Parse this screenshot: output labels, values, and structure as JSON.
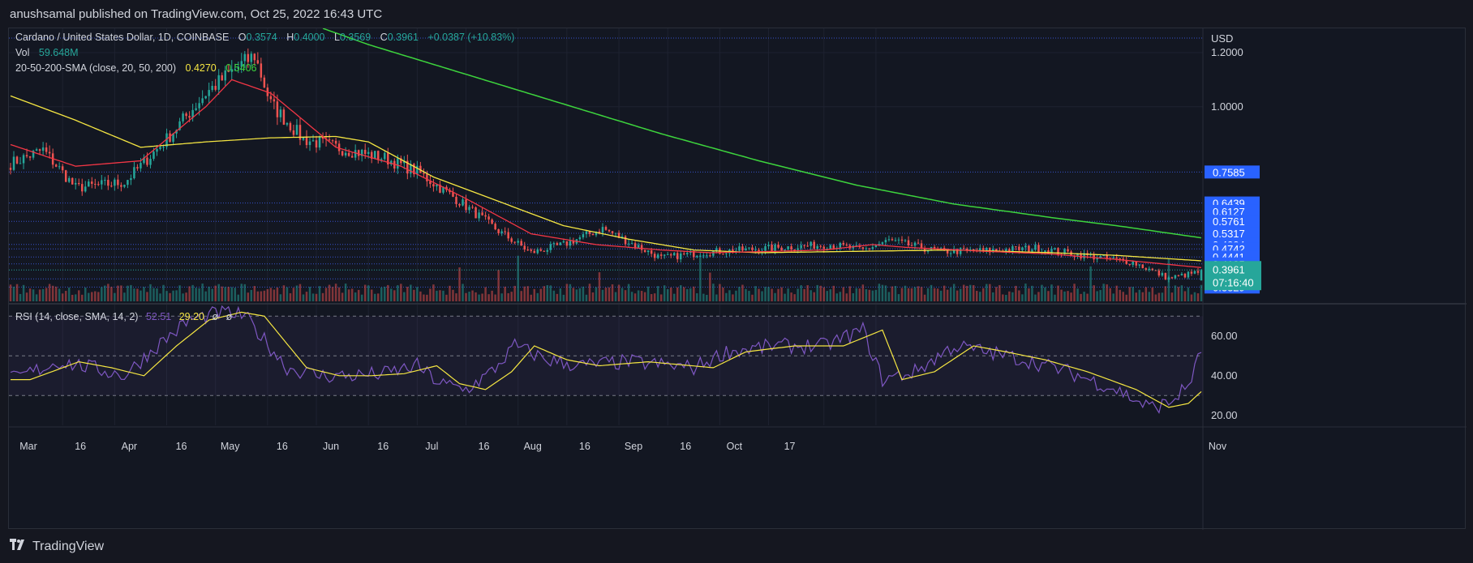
{
  "header": {
    "published_text": "anushsamal published on TradingView.com, Oct 25, 2022 16:43 UTC"
  },
  "legend": {
    "symbol": "Cardano / United States Dollar, 1D, COINBASE",
    "o_label": "O",
    "o_value": "0.3574",
    "h_label": "H",
    "h_value": "0.4000",
    "l_label": "L",
    "l_value": "0.3569",
    "c_label": "C",
    "c_value": "0.3961",
    "change": "+0.0387 (+10.83%)",
    "vol_label": "Vol",
    "vol_value": "59.648M",
    "sma_label": "20-50-200-SMA (close, 20, 50, 200)",
    "sma20_value": "0.4270",
    "sma50_value": "0.5406",
    "rsi_label": "RSI (14, close, SMA, 14, 2)",
    "rsi_value": "52.51",
    "rsi_sma_value": "29.20",
    "rsi_extra1": "ø",
    "rsi_extra2": "ø"
  },
  "price_axis": {
    "currency": "USD",
    "ticks": [
      "1.2000",
      "1.0000"
    ],
    "levels": [
      "0.7585",
      "0.6439",
      "0.6127",
      "0.5761",
      "0.5317",
      "0.4904",
      "0.4742",
      "0.4441",
      "0.4185",
      "0.3633",
      "0.3329"
    ],
    "current_price": "0.3961",
    "countdown": "07:16:40"
  },
  "rsi_axis": {
    "ticks": [
      "60.00",
      "40.00",
      "20.00"
    ]
  },
  "time_axis": {
    "labels": [
      "Mar",
      "16",
      "Apr",
      "16",
      "May",
      "16",
      "Jun",
      "16",
      "Jul",
      "16",
      "Aug",
      "16",
      "Sep",
      "16",
      "Oct",
      "17",
      "Nov"
    ]
  },
  "footer": {
    "brand": "TradingView"
  },
  "colors": {
    "up": "#26a69a",
    "down": "#ef5350",
    "sma20": "#f23645",
    "sma50": "#f5e642",
    "sma200": "#3dd43d",
    "rsi": "#7e57c2",
    "rsi_sma": "#f5e642",
    "level_line": "#3751c9",
    "level_label_bg": "#2962ff"
  },
  "chart_data": {
    "type": "candlestick",
    "title": "Cardano / United States Dollar, 1D, COINBASE",
    "ylim": [
      0.28,
      1.29
    ],
    "rsi_ylim": [
      15,
      75
    ],
    "horizontal_levels": [
      0.7585,
      0.6439,
      0.6127,
      0.5761,
      0.5317,
      0.4904,
      0.4742,
      0.4441,
      0.4185,
      0.3633,
      0.3329
    ],
    "close_anchors": [
      [
        0,
        0.79
      ],
      [
        10,
        0.84
      ],
      [
        20,
        0.7
      ],
      [
        35,
        0.72
      ],
      [
        48,
        0.88
      ],
      [
        60,
        1.05
      ],
      [
        68,
        1.13
      ],
      [
        75,
        1.19
      ],
      [
        80,
        1.01
      ],
      [
        90,
        0.88
      ],
      [
        100,
        0.85
      ],
      [
        115,
        0.81
      ],
      [
        125,
        0.76
      ],
      [
        138,
        0.65
      ],
      [
        150,
        0.54
      ],
      [
        160,
        0.46
      ],
      [
        170,
        0.49
      ],
      [
        182,
        0.55
      ],
      [
        190,
        0.5
      ],
      [
        200,
        0.44
      ],
      [
        212,
        0.46
      ],
      [
        225,
        0.47
      ],
      [
        238,
        0.48
      ],
      [
        252,
        0.49
      ],
      [
        262,
        0.47
      ],
      [
        270,
        0.505
      ],
      [
        285,
        0.465
      ],
      [
        300,
        0.467
      ],
      [
        315,
        0.477
      ],
      [
        330,
        0.45
      ],
      [
        345,
        0.425
      ],
      [
        356,
        0.365
      ],
      [
        366,
        0.39
      ]
    ],
    "rsi_anchors": [
      [
        0,
        38
      ],
      [
        15,
        47
      ],
      [
        25,
        44
      ],
      [
        35,
        40
      ],
      [
        45,
        55
      ],
      [
        55,
        68
      ],
      [
        65,
        72
      ],
      [
        72,
        70
      ],
      [
        78,
        58
      ],
      [
        85,
        44
      ],
      [
        95,
        40
      ],
      [
        105,
        40
      ],
      [
        115,
        41
      ],
      [
        125,
        45
      ],
      [
        132,
        36
      ],
      [
        140,
        33
      ],
      [
        148,
        42
      ],
      [
        155,
        55
      ],
      [
        165,
        48
      ],
      [
        175,
        45
      ],
      [
        190,
        47
      ],
      [
        210,
        44
      ],
      [
        220,
        52
      ],
      [
        235,
        55
      ],
      [
        250,
        55
      ],
      [
        262,
        63
      ],
      [
        268,
        38
      ],
      [
        278,
        42
      ],
      [
        290,
        55
      ],
      [
        300,
        52
      ],
      [
        312,
        48
      ],
      [
        325,
        42
      ],
      [
        340,
        33
      ],
      [
        350,
        24
      ],
      [
        356,
        26
      ],
      [
        362,
        35
      ],
      [
        366,
        52
      ]
    ],
    "sma20_anchors": [
      [
        0,
        0.86
      ],
      [
        20,
        0.78
      ],
      [
        40,
        0.8
      ],
      [
        60,
        1.0
      ],
      [
        68,
        1.1
      ],
      [
        80,
        1.05
      ],
      [
        100,
        0.85
      ],
      [
        120,
        0.78
      ],
      [
        140,
        0.66
      ],
      [
        160,
        0.53
      ],
      [
        180,
        0.49
      ],
      [
        200,
        0.47
      ],
      [
        215,
        0.46
      ],
      [
        235,
        0.465
      ],
      [
        250,
        0.47
      ],
      [
        265,
        0.49
      ],
      [
        275,
        0.48
      ],
      [
        300,
        0.465
      ],
      [
        320,
        0.455
      ],
      [
        340,
        0.435
      ],
      [
        366,
        0.405
      ]
    ],
    "sma50_anchors": [
      [
        0,
        1.04
      ],
      [
        20,
        0.95
      ],
      [
        40,
        0.85
      ],
      [
        60,
        0.87
      ],
      [
        80,
        0.885
      ],
      [
        100,
        0.89
      ],
      [
        110,
        0.87
      ],
      [
        130,
        0.74
      ],
      [
        150,
        0.65
      ],
      [
        170,
        0.56
      ],
      [
        190,
        0.51
      ],
      [
        210,
        0.47
      ],
      [
        230,
        0.46
      ],
      [
        260,
        0.465
      ],
      [
        290,
        0.47
      ],
      [
        320,
        0.46
      ],
      [
        340,
        0.45
      ],
      [
        366,
        0.43
      ]
    ],
    "sma200_anchors": [
      [
        96,
        1.29
      ],
      [
        110,
        1.23
      ],
      [
        140,
        1.12
      ],
      [
        170,
        1.01
      ],
      [
        200,
        0.9
      ],
      [
        230,
        0.8
      ],
      [
        260,
        0.71
      ],
      [
        290,
        0.64
      ],
      [
        320,
        0.59
      ],
      [
        340,
        0.56
      ],
      [
        366,
        0.515
      ]
    ]
  }
}
